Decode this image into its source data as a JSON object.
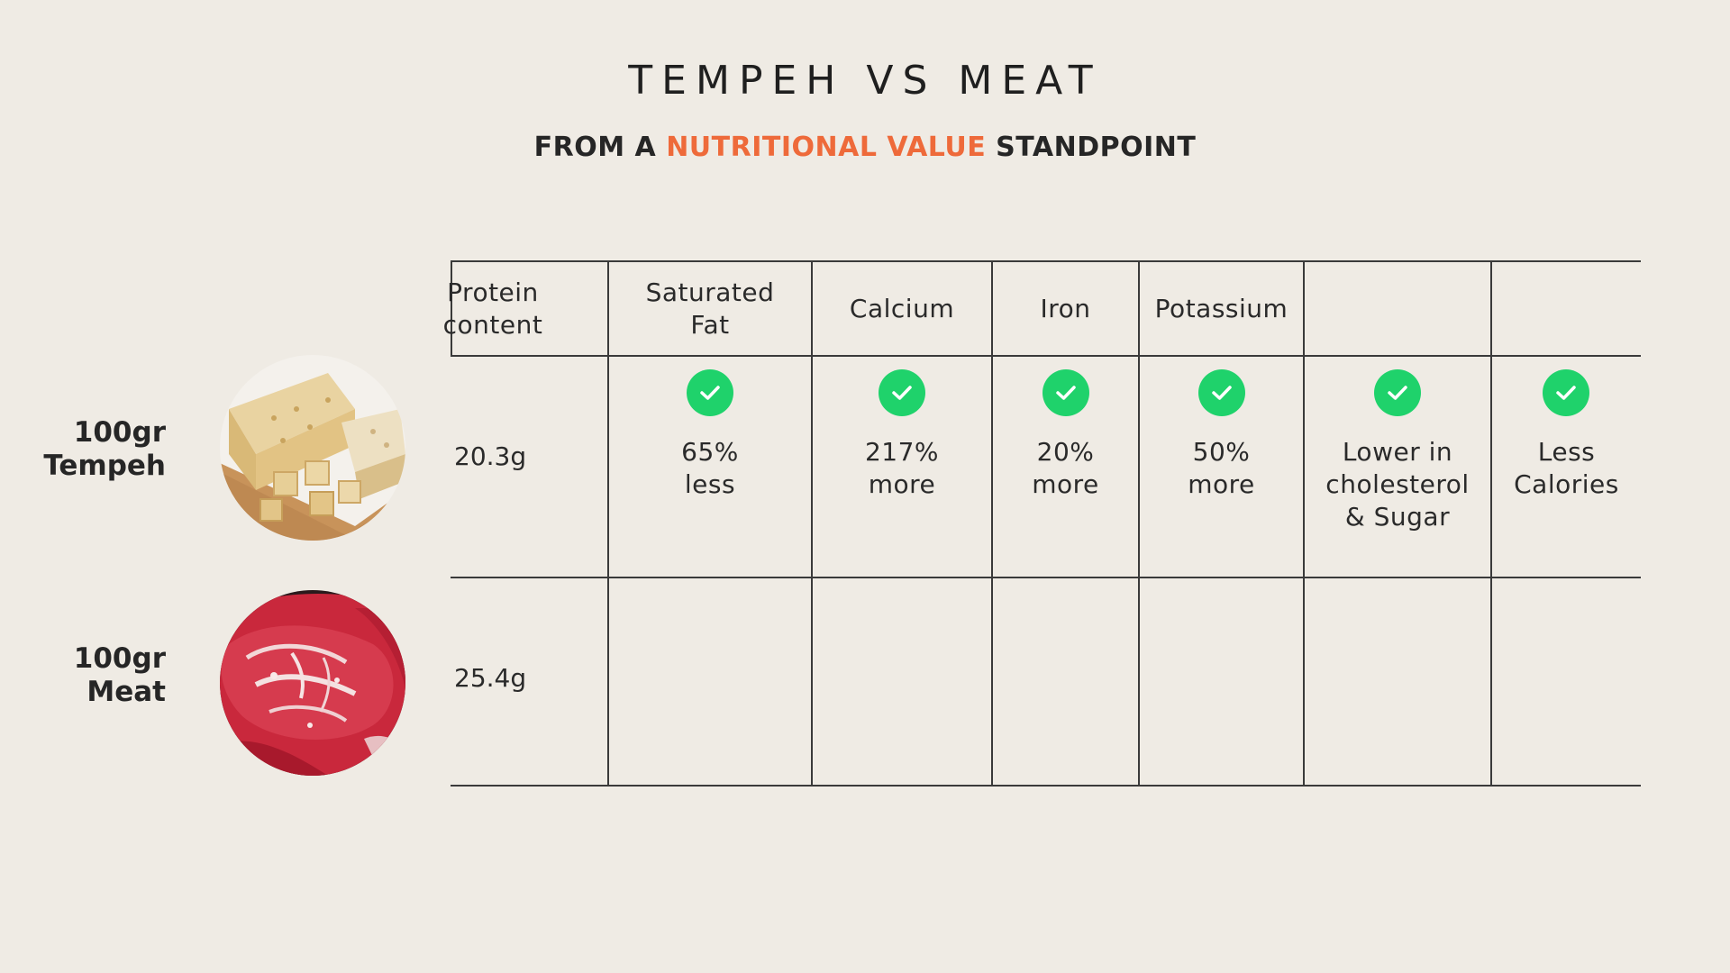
{
  "title": "TEMPEH VS MEAT",
  "subtitle": {
    "prefix": "FROM A ",
    "highlight": "NUTRITIONAL VALUE",
    "suffix": " STANDPOINT"
  },
  "colors": {
    "background": "#efebe4",
    "accent": "#ee6a3a",
    "check": "#1fd26b",
    "text": "#222222",
    "lines": "#3a3a3a"
  },
  "columns": [
    "Protein\ncontent",
    "Saturated\nFat",
    "Calcium",
    "Iron",
    "Potassium",
    "",
    ""
  ],
  "rows": [
    {
      "label": "100gr\nTempeh",
      "image": "tempeh-image",
      "protein": "20.3g",
      "cells": [
        {
          "icon": "check-icon",
          "text": "65%\nless"
        },
        {
          "icon": "check-icon",
          "text": "217%\nmore"
        },
        {
          "icon": "check-icon",
          "text": "20%\nmore"
        },
        {
          "icon": "check-icon",
          "text": "50%\nmore"
        },
        {
          "icon": "check-icon",
          "text": "Lower in\ncholesterol\n& Sugar"
        },
        {
          "icon": "check-icon",
          "text": "Less\nCalories"
        }
      ]
    },
    {
      "label": "100gr\nMeat",
      "image": "meat-image",
      "protein": "25.4g",
      "cells": []
    }
  ]
}
